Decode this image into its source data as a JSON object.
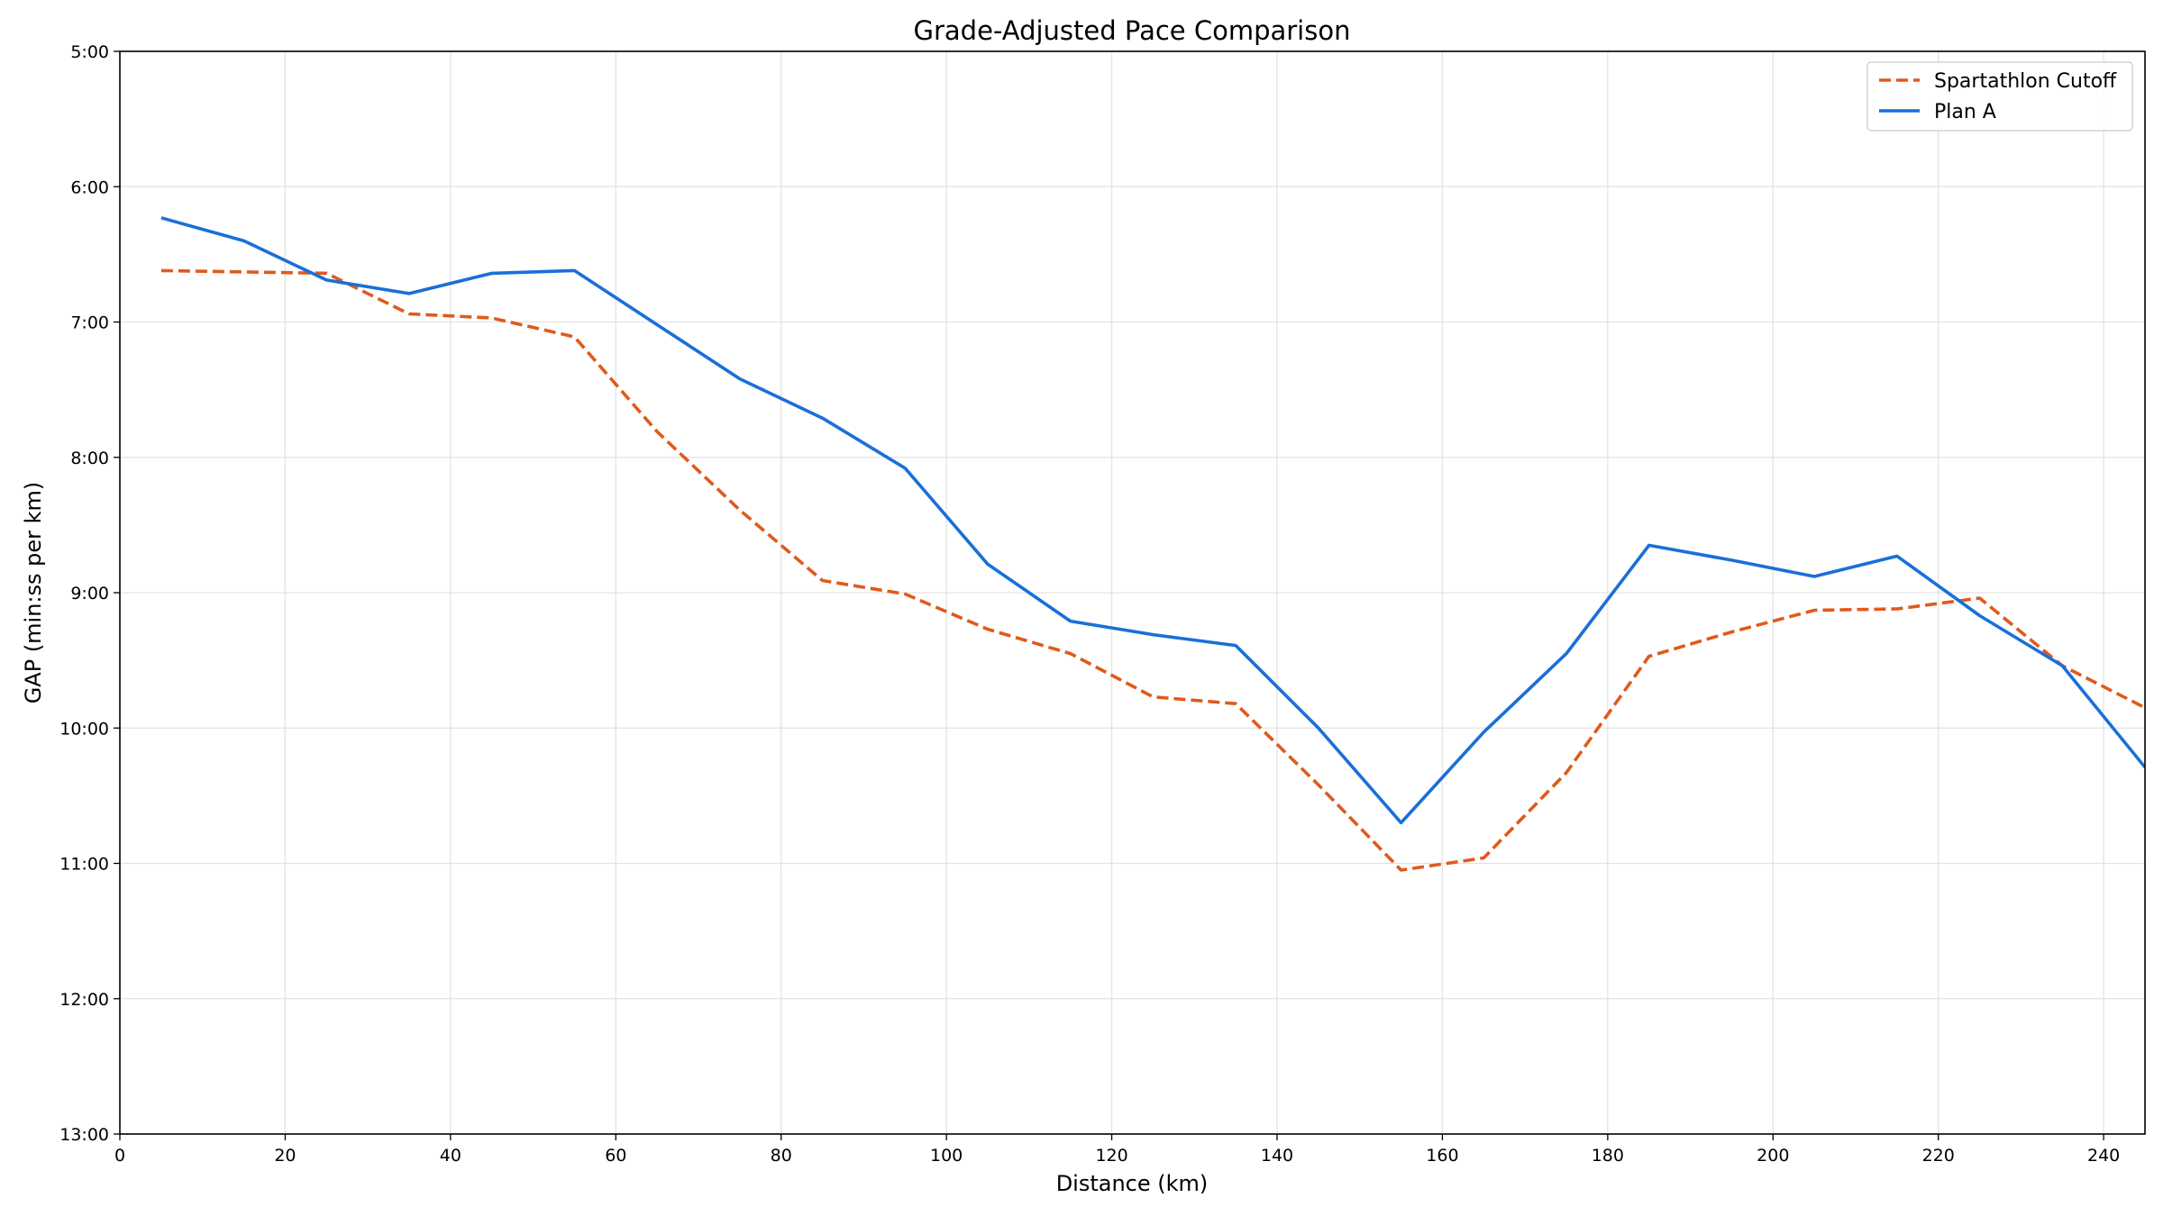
{
  "chart_data": {
    "type": "line",
    "title": "Grade-Adjusted Pace Comparison",
    "xlabel": "Distance (km)",
    "ylabel": "GAP (min:ss per km)",
    "xlim": [
      0,
      245
    ],
    "ylim_min_per_km": [
      5,
      13
    ],
    "y_inverted": true,
    "grid": true,
    "legend_position": "top-right",
    "x_ticks": [
      0,
      20,
      40,
      60,
      80,
      100,
      120,
      140,
      160,
      180,
      200,
      220,
      240
    ],
    "x_tick_labels": [
      "0",
      "20",
      "40",
      "60",
      "80",
      "100",
      "120",
      "140",
      "160",
      "180",
      "200",
      "220",
      "240"
    ],
    "y_ticks": [
      5,
      6,
      7,
      8,
      9,
      10,
      11,
      12,
      13
    ],
    "y_tick_labels": [
      "5:00",
      "6:00",
      "7:00",
      "8:00",
      "9:00",
      "10:00",
      "11:00",
      "12:00",
      "13:00"
    ],
    "x": [
      5,
      15,
      25,
      35,
      45,
      55,
      65,
      75,
      85,
      95,
      105,
      115,
      125,
      135,
      145,
      155,
      165,
      175,
      185,
      195,
      205,
      215,
      225,
      235,
      245
    ],
    "series": [
      {
        "name": "Spartathlon Cutoff",
        "color": "#e05a1b",
        "style": "dashed",
        "values": [
          6.62,
          6.63,
          6.64,
          6.94,
          6.97,
          7.11,
          7.81,
          8.39,
          8.91,
          9.01,
          9.27,
          9.45,
          9.77,
          9.82,
          10.42,
          11.05,
          10.96,
          10.33,
          9.47,
          9.29,
          9.13,
          9.12,
          9.04,
          9.54,
          9.85
        ]
      },
      {
        "name": "Plan A",
        "color": "#1a6fd8",
        "style": "solid",
        "values": [
          6.23,
          6.4,
          6.69,
          6.79,
          6.64,
          6.62,
          7.02,
          7.42,
          7.71,
          8.08,
          8.79,
          9.21,
          9.31,
          9.39,
          10.0,
          10.7,
          10.03,
          9.45,
          8.65,
          8.76,
          8.88,
          8.73,
          9.17,
          9.54,
          10.29
        ]
      }
    ]
  }
}
